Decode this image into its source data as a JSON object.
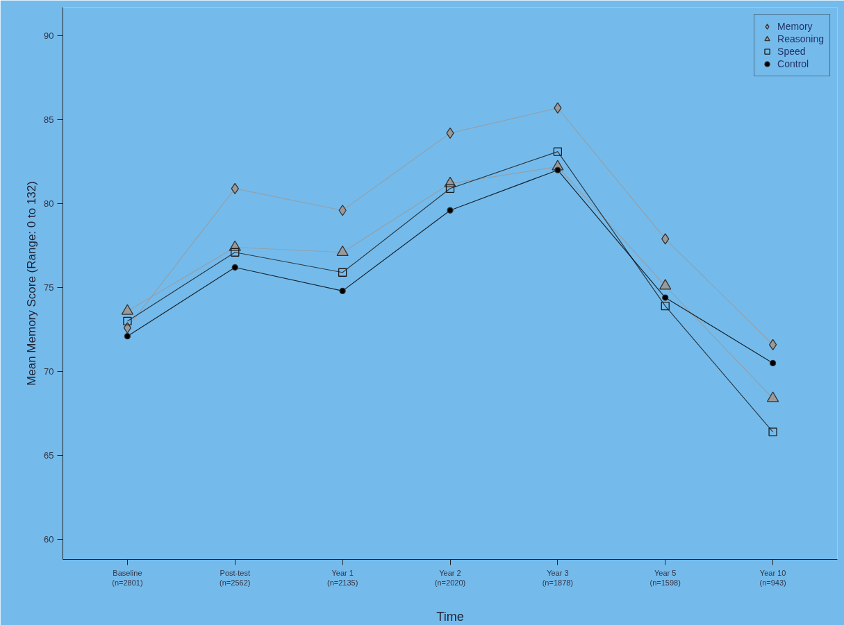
{
  "chart_data": {
    "type": "line",
    "xlabel": "Time",
    "ylabel": "Mean Memory Score (Range: 0 to 132)",
    "categories": [
      "Baseline\n(n=2801)",
      "Post-test\n(n=2562)",
      "Year 1\n(n=2135)",
      "Year 2\n(n=2020)",
      "Year 3\n(n=1878)",
      "Year 5\n(n=1598)",
      "Year 10\n(n=943)"
    ],
    "ylim": [
      58.8,
      91.7
    ],
    "yticks": [
      60,
      65,
      70,
      75,
      80,
      85,
      90
    ],
    "grid": false,
    "legend": "top right",
    "series": [
      {
        "name": "Memory",
        "color": "#9a9a9a",
        "marker": "diamond",
        "values": [
          72.6,
          80.9,
          79.6,
          84.2,
          85.7,
          77.9,
          71.6
        ]
      },
      {
        "name": "Reasoning",
        "color": "#9a9a9a",
        "marker": "triangle",
        "values": [
          73.6,
          77.4,
          77.1,
          81.2,
          82.2,
          75.1,
          68.4
        ]
      },
      {
        "name": "Speed",
        "color": "#1a1a1a",
        "marker": "square",
        "values": [
          73.0,
          77.1,
          75.9,
          80.9,
          83.1,
          73.9,
          66.4
        ]
      },
      {
        "name": "Control",
        "color": "#000000",
        "marker": "circle",
        "values": [
          72.1,
          76.2,
          74.8,
          79.6,
          82.0,
          74.4,
          70.5
        ]
      }
    ]
  }
}
